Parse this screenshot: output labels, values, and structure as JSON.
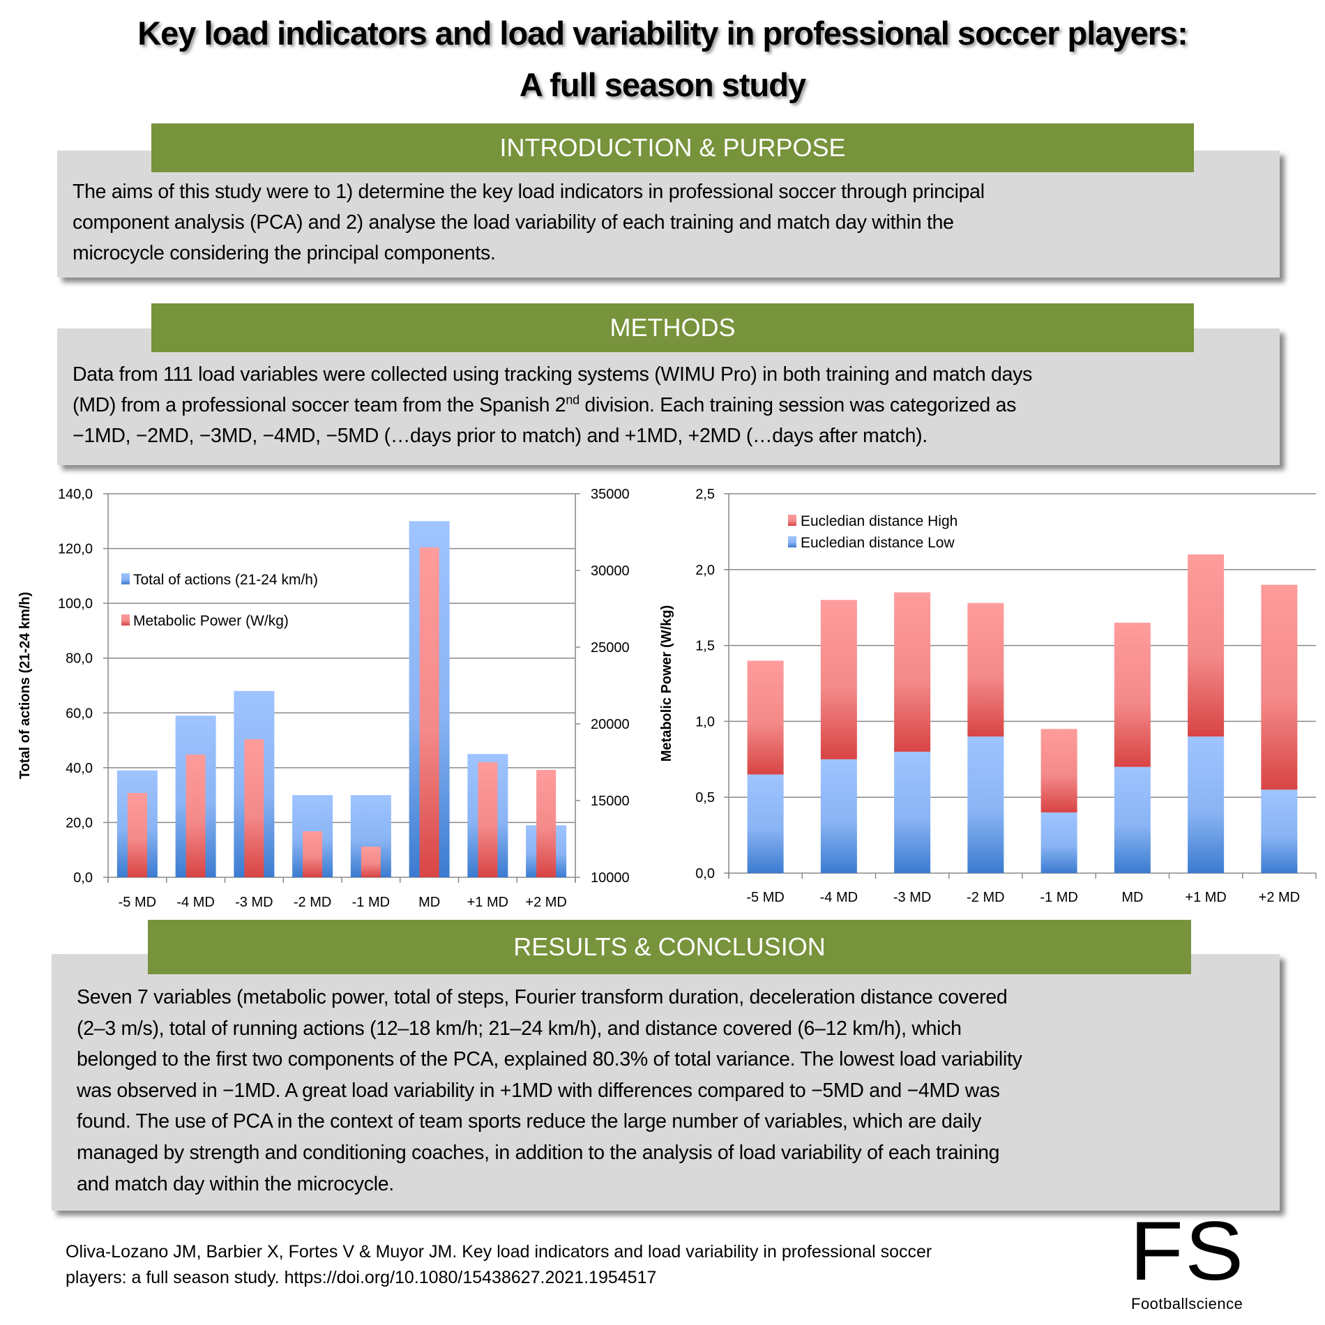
{
  "title": {
    "line1": "Key load indicators and load variability in professional soccer players:",
    "line2": "A full season study"
  },
  "introduction": {
    "heading": "INTRODUCTION & PURPOSE",
    "lines": [
      "The aims of this study were to 1) determine the key load indicators in professional soccer through principal",
      "component analysis (PCA) and 2) analyse the load variability of each training and match day within the",
      "microcycle considering the principal components."
    ]
  },
  "methods": {
    "heading": "METHODS",
    "line1": "Data from 111 load variables were collected using tracking systems (WIMU Pro) in both training and match days",
    "line2_a": "(MD) from a professional soccer team from the Spanish 2",
    "line2_sup": "nd",
    "line2_b": " division. Each training session was categorized as",
    "line3": "−1MD, −2MD, −3MD, −4MD, −5MD (…days prior to match) and +1MD, +2MD (…days after match)."
  },
  "results": {
    "heading": "RESULTS & CONCLUSION",
    "lines": [
      "Seven 7 variables (metabolic power, total of steps, Fourier transform duration, deceleration distance covered",
      "(2–3 m/s), total of running actions (12–18 km/h; 21–24 km/h), and distance covered (6–12 km/h), which",
      "belonged to the first two components of the PCA, explained 80.3% of total variance. The lowest load variability",
      "was observed in −1MD. A great load variability in +1MD with differences compared to −5MD and −4MD was",
      "found. The use of PCA in the context of team sports reduce the large number of variables, which are daily",
      "managed by strength and conditioning coaches, in addition to the analysis of load variability of each training",
      "and match day within the microcycle."
    ]
  },
  "citation": {
    "line1": "Oliva-Lozano JM, Barbier X, Fortes V & Muyor JM. Key load indicators and load variability in professional soccer",
    "line2": "players: a full season study. https://doi.org/10.1080/15438627.2021.1954517"
  },
  "logo": {
    "letters": "FS",
    "name": "Footballscience"
  },
  "colors": {
    "section_header": "#77933c",
    "box_bg": "#d9d9d9",
    "blue_top": "#9fc4ff",
    "blue_bottom": "#3b7bd0",
    "red_top": "#ff9c9c",
    "red_bottom": "#d84444"
  },
  "chart_data": [
    {
      "type": "bar",
      "title": "",
      "categories": [
        "-5 MD",
        "-4 MD",
        "-3 MD",
        "-2 MD",
        "-1 MD",
        "MD",
        "+1 MD",
        "+2 MD"
      ],
      "ylabel": "Total of actions (21-24 km/h)",
      "ylim": [
        0,
        140
      ],
      "yticks": [
        "0,0",
        "20,0",
        "40,0",
        "60,0",
        "80,0",
        "100,0",
        "120,0",
        "140,0"
      ],
      "y2lim": [
        10000,
        35000
      ],
      "y2ticks": [
        "10000",
        "15000",
        "20000",
        "25000",
        "30000",
        "35000"
      ],
      "grid": true,
      "legend_placement": "upper-left",
      "series": [
        {
          "name": "Total of actions (21-24 km/h)",
          "axis": "left",
          "values": [
            39,
            59,
            68,
            30,
            30,
            130,
            45,
            19
          ]
        },
        {
          "name": "Metabolic Power (W/kg)",
          "axis": "right",
          "values": [
            15500,
            18000,
            19000,
            13000,
            12000,
            31500,
            17500,
            17000
          ]
        }
      ]
    },
    {
      "type": "bar",
      "stacked": true,
      "title": "",
      "categories": [
        "-5 MD",
        "-4 MD",
        "-3 MD",
        "-2 MD",
        "-1 MD",
        "MD",
        "+1 MD",
        "+2 MD"
      ],
      "ylabel": "Metabolic Power (W/kg)",
      "ylim": [
        0,
        2.5
      ],
      "yticks": [
        "0,0",
        "0,5",
        "1,0",
        "1,5",
        "2,0",
        "2,5"
      ],
      "grid": true,
      "legend_placement": "upper-left",
      "series": [
        {
          "name": "Eucledian distance Low",
          "values": [
            0.65,
            0.75,
            0.8,
            0.9,
            0.4,
            0.7,
            0.9,
            0.55
          ]
        },
        {
          "name": "Eucledian distance High",
          "values": [
            0.75,
            1.05,
            1.05,
            0.88,
            0.55,
            0.95,
            1.2,
            1.35
          ]
        }
      ]
    }
  ]
}
